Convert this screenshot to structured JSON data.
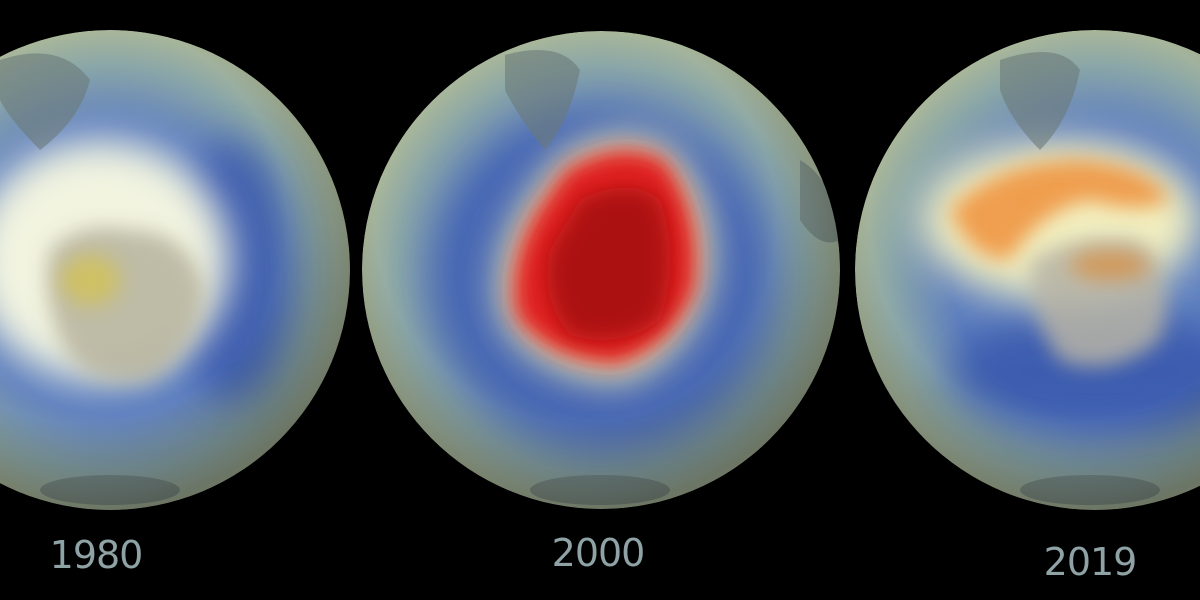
{
  "panels": [
    {
      "year": "1980"
    },
    {
      "year": "2000"
    },
    {
      "year": "2019"
    }
  ]
}
